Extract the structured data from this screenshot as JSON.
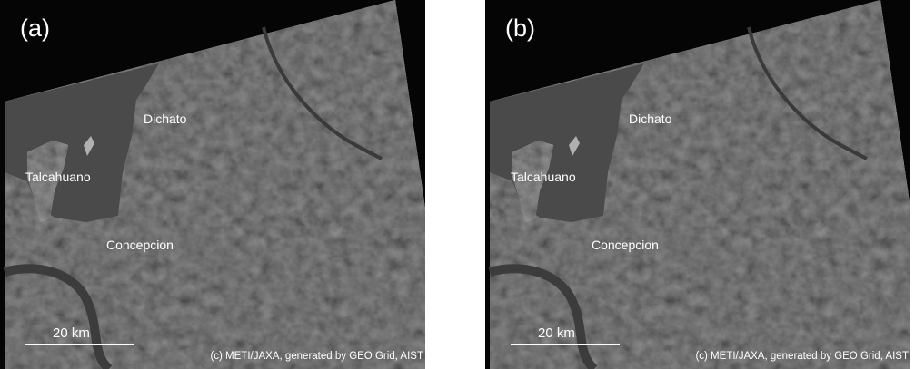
{
  "panels": [
    {
      "label": "(a)",
      "places": [
        "Dichato",
        "Talcahuano",
        "Concepcion"
      ],
      "scale": "20 km",
      "credit": "(c) METI/JAXA, generated by GEO Grid, AIST"
    },
    {
      "label": "(b)",
      "places": [
        "Dichato",
        "Talcahuano",
        "Concepcion"
      ],
      "scale": "20 km",
      "credit": "(c) METI/JAXA, generated by GEO Grid, AIST"
    }
  ]
}
